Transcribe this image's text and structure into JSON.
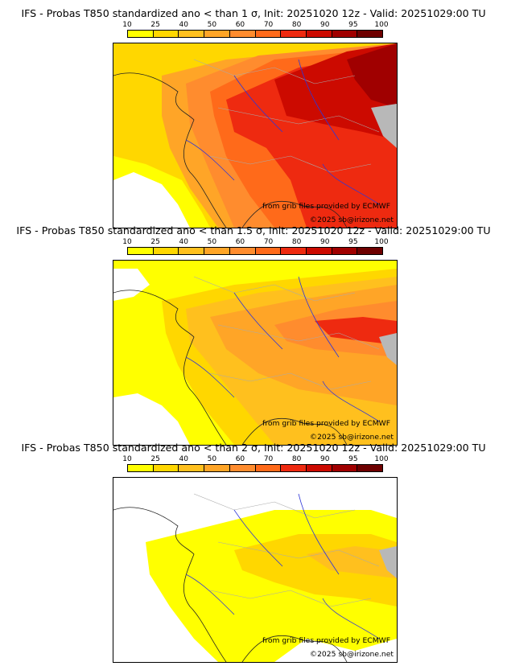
{
  "colors": {
    "bins": [
      "#ffff00",
      "#ffd700",
      "#ffc01e",
      "#ffa527",
      "#ff8c2e",
      "#ff6a1a",
      "#ee2a10",
      "#cc0a00",
      "#a00000",
      "#6e0000"
    ],
    "land_white": "#ffffff",
    "mountain_gray": "#b8b8b8",
    "coast": "#222222",
    "borders": "#aaaaaa",
    "rivers": "#2e36d8"
  },
  "colorbar": {
    "ticks": [
      "10",
      "25",
      "40",
      "50",
      "60",
      "70",
      "80",
      "90",
      "95",
      "100"
    ]
  },
  "panels": [
    {
      "title": "IFS - Probas T850  standardized ano < than 1 σ, Init: 20251020 12z - Valid: 20251029:00 TU",
      "credit_source": "from grib files provided by ECMWF",
      "credit_copyright": "©2025 sb@irizone.net",
      "field_level": 1
    },
    {
      "title": "IFS - Probas T850  standardized ano < than 1.5 σ, Init: 20251020 12z - Valid: 20251029:00 TU",
      "credit_source": "from grib files provided by ECMWF",
      "credit_copyright": "©2025 sb@irizone.net",
      "field_level": 2
    },
    {
      "title": "IFS - Probas T850  standardized ano < than 2 σ, Init: 20251020 12z - Valid: 20251029:00 TU",
      "credit_source": "from grib files provided by ECMWF",
      "credit_copyright": "©2025 sb@irizone.net",
      "field_level": 3
    }
  ]
}
